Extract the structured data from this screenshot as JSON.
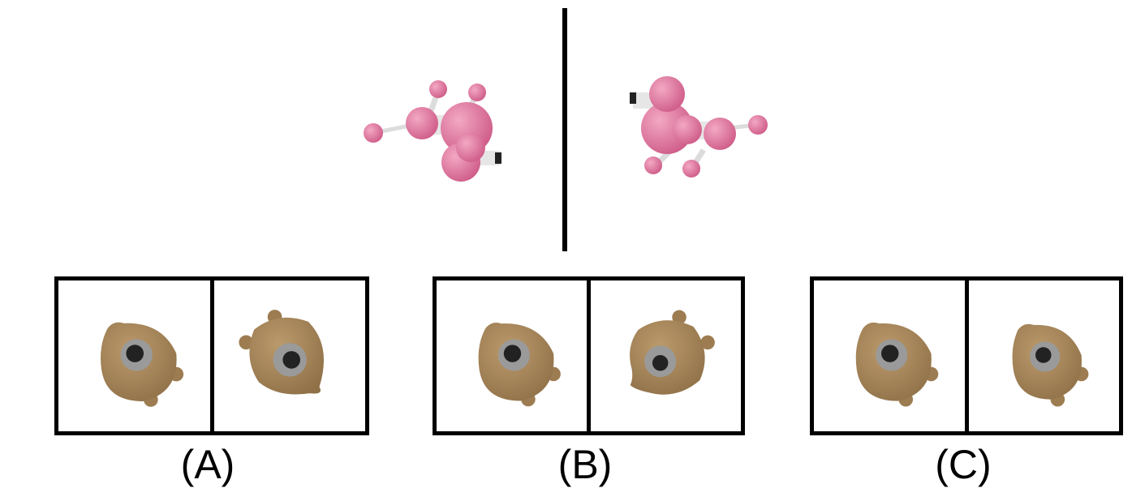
{
  "reference": {
    "left_object_icon": "pink-poodle-balloon-icon",
    "right_object_icon": "pink-poodle-balloon-mirrored-icon",
    "object_color": "#e07aa0"
  },
  "options": [
    {
      "label": "(A)",
      "icon": "brown-bear-toy-icon"
    },
    {
      "label": "(B)",
      "icon": "brown-bear-toy-icon"
    },
    {
      "label": "(C)",
      "icon": "brown-bear-toy-icon"
    }
  ],
  "colors": {
    "bear": "#a8885c",
    "bear_dark": "#8a6d45",
    "eye_ring": "#9a9a9a",
    "eye": "#222222"
  }
}
